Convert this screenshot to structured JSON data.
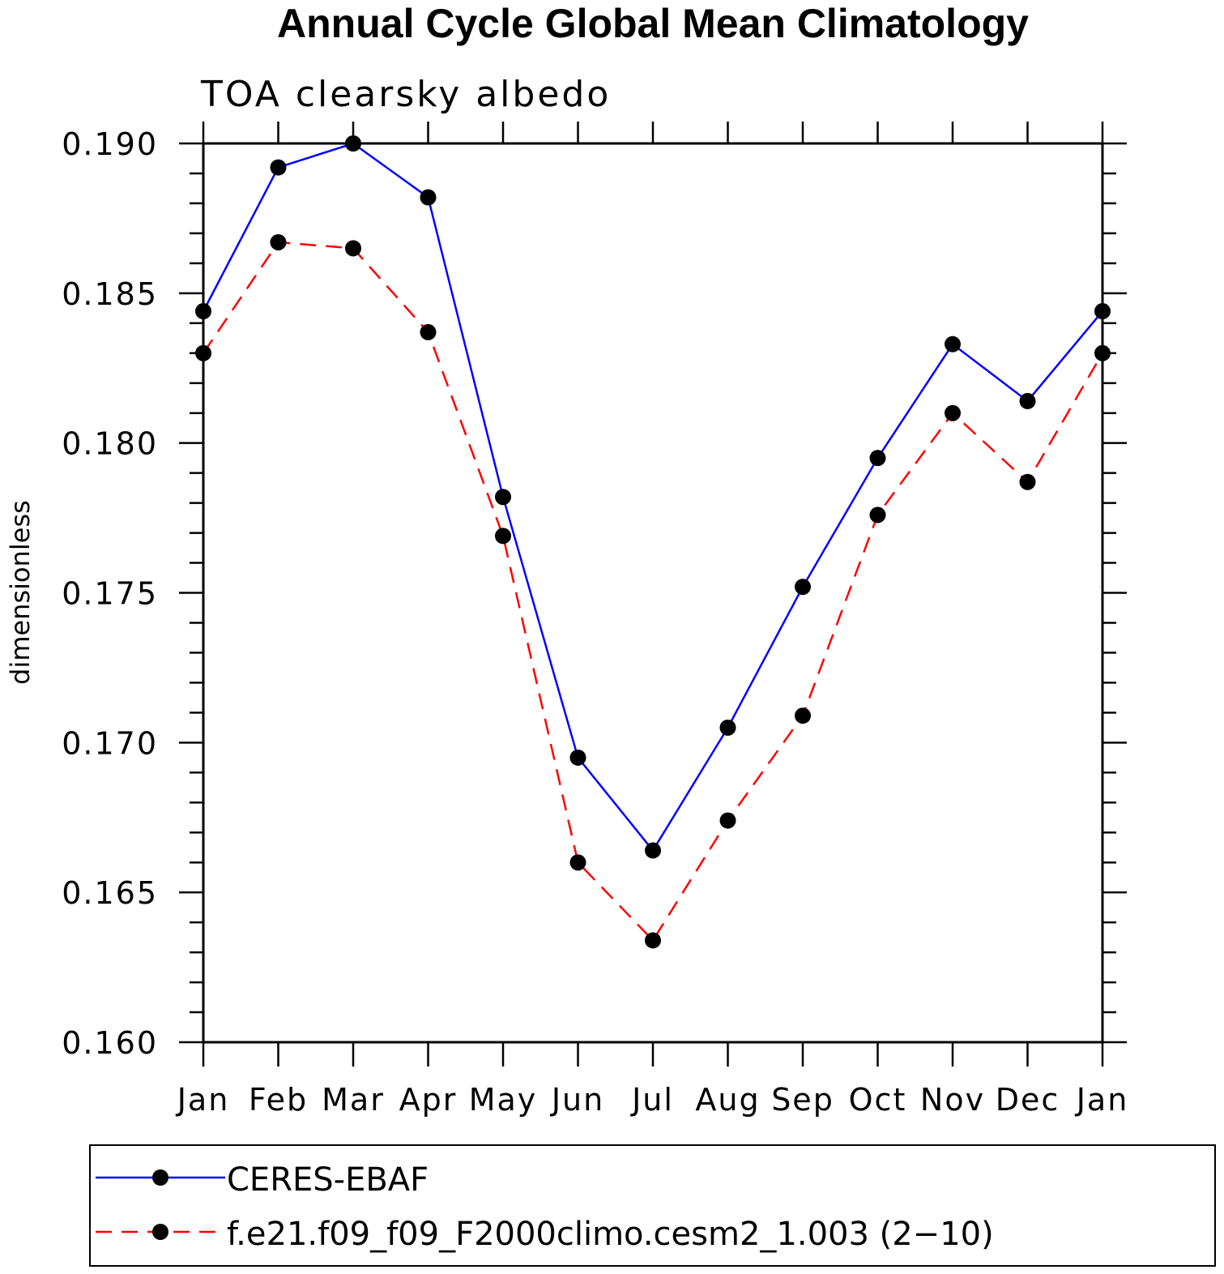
{
  "chart_data": {
    "type": "line",
    "title": "Annual Cycle Global Mean Climatology",
    "subtitle": "TOA clearsky albedo",
    "xlabel": "",
    "ylabel": "dimensionless",
    "categories": [
      "Jan",
      "Feb",
      "Mar",
      "Apr",
      "May",
      "Jun",
      "Jul",
      "Aug",
      "Sep",
      "Oct",
      "Nov",
      "Dec",
      "Jan"
    ],
    "y_ticks": [
      "0.160",
      "0.165",
      "0.170",
      "0.175",
      "0.180",
      "0.185",
      "0.190"
    ],
    "ylim": [
      0.16,
      0.19
    ],
    "grid": false,
    "legend_position": "bottom",
    "series": [
      {
        "name": "CERES-EBAF",
        "color": "#0000ff",
        "line_style": "solid",
        "marker": "filled-circle",
        "values": [
          0.1844,
          0.1892,
          0.19,
          0.1882,
          0.1782,
          0.1695,
          0.1664,
          0.1705,
          0.1752,
          0.1795,
          0.1833,
          0.1814,
          0.1844
        ]
      },
      {
        "name": "f.e21.f09_f09_F2000climo.cesm2_1.003 (2−10)",
        "color": "#ff0000",
        "line_style": "dashed",
        "marker": "filled-circle",
        "values": [
          0.183,
          0.1867,
          0.1865,
          0.1837,
          0.1769,
          0.166,
          0.1634,
          0.1674,
          0.1709,
          0.1776,
          0.181,
          0.1787,
          0.183
        ]
      }
    ]
  }
}
